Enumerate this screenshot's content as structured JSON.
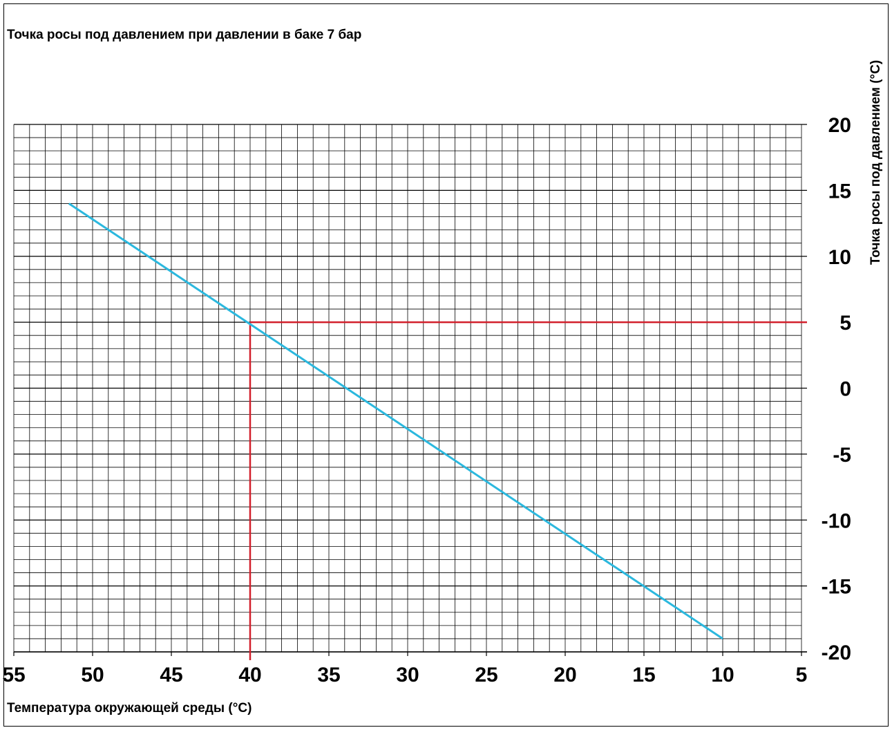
{
  "chart_data": {
    "type": "line",
    "title": "Точка росы под давлением при давлении в баке 7 бар",
    "xlabel": "Температура окружающей среды (°C)",
    "ylabel": "Точка росы под давлением (°C)",
    "xlim": [
      55,
      5
    ],
    "ylim": [
      -20,
      20
    ],
    "x_reversed": true,
    "grid": true,
    "x_ticks": [
      "55",
      "50",
      "45",
      "40",
      "35",
      "30",
      "25",
      "20",
      "15",
      "10",
      "5"
    ],
    "y_ticks": [
      "20",
      "15",
      "10",
      "5",
      "0",
      "-5",
      "-10",
      "-15",
      "-20"
    ],
    "series": [
      {
        "x": [
          51.5,
          10
        ],
        "y": [
          14,
          -19
        ],
        "color": "#2bb8de"
      }
    ],
    "reference": {
      "x": 40,
      "y": 5,
      "color": "#d21f2b"
    }
  }
}
